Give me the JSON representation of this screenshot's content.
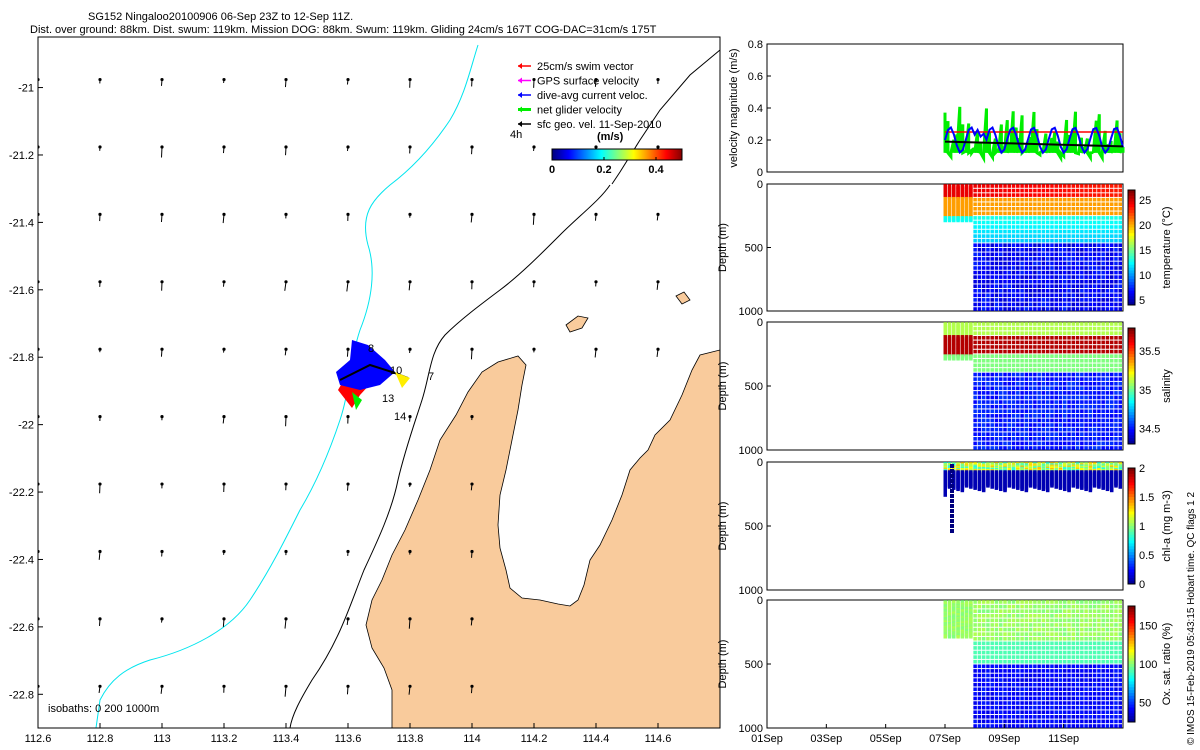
{
  "header": {
    "line1": "SG152 Ningaloo20100906 06-Sep 23Z to 12-Sep 11Z.",
    "line2": "Dist. over ground: 88km. Dist. swum: 119km. Mission DOG: 88km. Swum: 119km. Gliding 24cm/s 167T COG-DAC=31cm/s 175T"
  },
  "footer_note": "© IMOS 15-Feb-2019 05:43:15 Hobart time. QC flags 1  2",
  "colors": {
    "land": "#f9cb9c",
    "coast_line": "#000000",
    "shelf_line": "#00e5ee",
    "glider_red": "#ff0000",
    "glider_blue": "#0000ff",
    "glider_green": "#00ee00",
    "glider_magenta": "#ff00ff"
  },
  "chart_data": [
    {
      "type": "map",
      "title": "SG152 Ningaloo20100906 06-Sep 23Z to 12-Sep 11Z.",
      "xlim": [
        112.6,
        114.8
      ],
      "ylim": [
        -22.9,
        -20.85
      ],
      "xticks": [
        "112.6",
        "112.8",
        "113",
        "113.2",
        "113.4",
        "113.6",
        "113.8",
        "114",
        "114.2",
        "114.4",
        "114.6"
      ],
      "yticks": [
        "-21",
        "-21.2",
        "-21.4",
        "-21.6",
        "-21.8",
        "-22",
        "-22.2",
        "-22.4",
        "-22.6",
        "-22.8"
      ],
      "legend": [
        {
          "label": "25cm/s swim vector",
          "color": "#ff0000"
        },
        {
          "label": "GPS surface velocity",
          "color": "#ff00ff"
        },
        {
          "label": "dive-avg current veloc.",
          "color": "#0000ff"
        },
        {
          "label": "net glider velocity",
          "color": "#00ee00"
        },
        {
          "label": "sfc geo. vel. 11-Sep-2010",
          "color": "#000000"
        }
      ],
      "legend_placement": "top-right",
      "colorbar": {
        "label": "(m/s)",
        "ticks": [
          "0",
          "0.2",
          "0.4"
        ],
        "range": [
          0,
          0.5
        ]
      },
      "time_tag": "4h",
      "day_labels": [
        "8",
        "10",
        "7",
        "13",
        "14"
      ],
      "isobath_label": "isobaths: 0   200  1000m"
    },
    {
      "type": "line",
      "ylabel": "velocity magnitude (m/s)",
      "ylim": [
        0,
        0.8
      ],
      "yticks": [
        "0",
        "0.2",
        "0.4",
        "0.6",
        "0.8"
      ],
      "series": [
        {
          "name": "net glider velocity",
          "color": "#00ee00"
        },
        {
          "name": "dive-avg current",
          "color": "#0000ff"
        },
        {
          "name": "swim",
          "color": "#ff0000",
          "value": 0.25
        },
        {
          "name": "surface",
          "color": "#000000",
          "value": 0.17
        }
      ]
    },
    {
      "type": "scatter",
      "ylabel": "Depth (m)",
      "clabel": "temperature (°C)",
      "yticks": [
        "0",
        "500",
        "1000"
      ],
      "cticks": [
        "25",
        "20",
        "15",
        "10",
        "5"
      ],
      "crange": [
        4,
        27
      ]
    },
    {
      "type": "scatter",
      "ylabel": "Depth (m)",
      "clabel": "salinity",
      "yticks": [
        "0",
        "500",
        "1000"
      ],
      "cticks": [
        "35.5",
        "35",
        "34.5"
      ],
      "crange": [
        34.3,
        35.8
      ]
    },
    {
      "type": "scatter",
      "ylabel": "Depth (m)",
      "clabel": "chl-a (mg m-3)",
      "yticks": [
        "0",
        "500",
        "1000"
      ],
      "cticks": [
        "2",
        "1.5",
        "1",
        "0.5",
        "0"
      ],
      "crange": [
        0,
        2
      ]
    },
    {
      "type": "scatter",
      "ylabel": "Depth (m)",
      "clabel": "Ox. sat. ratio (%)",
      "yticks": [
        "0",
        "500",
        "1000"
      ],
      "cticks": [
        "150",
        "100",
        "50"
      ],
      "crange": [
        25,
        175
      ]
    }
  ],
  "time_axis": {
    "ticks": [
      "01Sep",
      "03Sep",
      "05Sep",
      "07Sep",
      "09Sep",
      "11Sep"
    ]
  }
}
